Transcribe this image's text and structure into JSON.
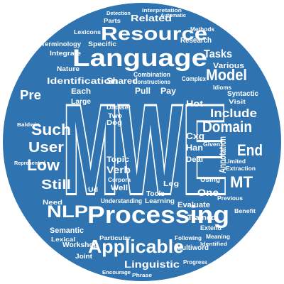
{
  "colors": {
    "background": "#ffffff",
    "circle": "#2f73b0",
    "word": "#ffffff",
    "mwe": "#2f73b0"
  },
  "words": {
    "mwe": "MWE",
    "language": "Language",
    "processing": "Processing",
    "resource": "Resource",
    "applicable": "Applicable",
    "nlp": "NLP",
    "model": "Model",
    "domain": "Domain",
    "annotation": "Annotation",
    "include": "Include",
    "tasks": "Tasks",
    "end": "End",
    "mt": "MT",
    "such": "Such",
    "user": "User",
    "low": "Low",
    "still": "Still",
    "pre": "Pre",
    "identification": "Identification",
    "related": "Related",
    "research": "Research",
    "various": "Various",
    "linguistic": "Linguistic",
    "multiword": "Multiword",
    "trained": "Trained",
    "evaluate": "Evaluate",
    "semantic": "Semantic",
    "workshop": "Workshop",
    "verb": "Verb",
    "one": "One",
    "topic": "Topic",
    "understanding": "Understanding",
    "learning": "Learning",
    "pull": "Pull",
    "pay": "Pay",
    "shared": "Shared",
    "syntactic": "Syntactic",
    "terminology": "Terminology",
    "integrate": "Integrate",
    "specific": "Specific",
    "lexicons": "Lexicons",
    "parts": "Parts",
    "methods": "Methods",
    "interpretation": "Interpretation",
    "detection": "Detection",
    "automatic": "Automatic",
    "well": "Well",
    "need": "Need",
    "joint": "Joint",
    "particular": "Particular",
    "lexical": "Lexical",
    "using": "Using",
    "previous": "Previous",
    "extend": "Extend",
    "following": "Following",
    "meaning": "Meaning",
    "progress": "Progress",
    "nature": "Nature",
    "each": "Each",
    "large": "Large",
    "combination": "Combination",
    "constructions": "Constructions",
    "complex": "Complex",
    "hot": "Hot",
    "cxg": "Cxg",
    "han": "Han",
    "deal": "Deal",
    "leg": "Leg",
    "dog": "Dog",
    "tools": "Tools",
    "corpora": "Corpora",
    "visit": "Visit",
    "limited": "Limited",
    "extraction": "Extraction",
    "benefit": "Benefit",
    "dataset": "Dataset",
    "two": "Two",
    "ud": "Ud",
    "identified": "Identified",
    "encourage": "Encourage",
    "phrase": "Phrase",
    "represented": "Represented",
    "baldwin": "Baldwin",
    "idioms": "Idioms",
    "given": "Given"
  }
}
